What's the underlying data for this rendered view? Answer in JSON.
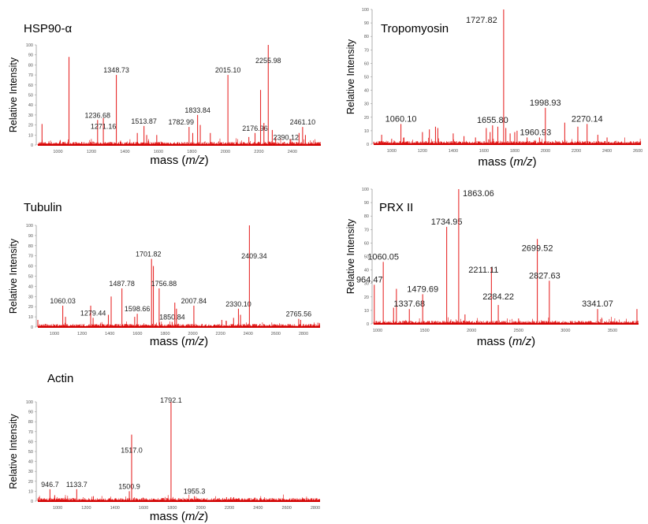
{
  "chart_data": [
    {
      "type": "bar",
      "title": "HSP90-α",
      "xlabel_prefix": "mass (",
      "xlabel_italic": "m/z",
      "xlabel_suffix": ")",
      "ylabel": "Relative Intensity",
      "xlim": [
        880,
        2570
      ],
      "ylim": [
        0,
        100
      ],
      "xticks": [
        1000,
        1200,
        1400,
        1600,
        1800,
        2000,
        2200,
        2400
      ],
      "yticks": [
        0,
        10,
        20,
        30,
        40,
        50,
        60,
        70,
        80,
        90,
        100
      ],
      "peaks": [
        {
          "mz": 905,
          "intensity": 21
        },
        {
          "mz": 1066,
          "intensity": 88
        },
        {
          "mz": 1236.68,
          "intensity": 25,
          "label": "1236.68"
        },
        {
          "mz": 1271.16,
          "intensity": 27,
          "label": "1271.16"
        },
        {
          "mz": 1348.73,
          "intensity": 70,
          "label": "1348.73"
        },
        {
          "mz": 1474,
          "intensity": 12
        },
        {
          "mz": 1513.87,
          "intensity": 19,
          "label": "1513.87"
        },
        {
          "mz": 1530,
          "intensity": 10
        },
        {
          "mz": 1590,
          "intensity": 10
        },
        {
          "mz": 1782.99,
          "intensity": 18,
          "label": "1782.99"
        },
        {
          "mz": 1805,
          "intensity": 12
        },
        {
          "mz": 1833.84,
          "intensity": 30,
          "label": "1833.84"
        },
        {
          "mz": 1850,
          "intensity": 20
        },
        {
          "mz": 1910,
          "intensity": 12
        },
        {
          "mz": 2015.1,
          "intensity": 70,
          "label": "2015.10"
        },
        {
          "mz": 2140,
          "intensity": 8
        },
        {
          "mz": 2176.96,
          "intensity": 12,
          "label": "2176.96"
        },
        {
          "mz": 2210,
          "intensity": 55
        },
        {
          "mz": 2230,
          "intensity": 22
        },
        {
          "mz": 2255.98,
          "intensity": 100,
          "label": "2255.98"
        },
        {
          "mz": 2280,
          "intensity": 15
        },
        {
          "mz": 2300,
          "intensity": 8
        },
        {
          "mz": 2390.12,
          "intensity": 6,
          "label": "2390.12"
        },
        {
          "mz": 2440,
          "intensity": 12
        },
        {
          "mz": 2461.1,
          "intensity": 18,
          "label": "2461.10"
        },
        {
          "mz": 2478,
          "intensity": 10
        }
      ]
    },
    {
      "type": "bar",
      "title": "Tropomyosin",
      "xlabel_prefix": "mass (",
      "xlabel_italic": "m/z",
      "xlabel_suffix": ")",
      "ylabel": "Relative Intensity",
      "xlim": [
        883,
        2620
      ],
      "ylim": [
        0,
        100
      ],
      "xticks": [
        1000,
        1200,
        1400,
        1600,
        1800,
        2000,
        2200,
        2400,
        2600
      ],
      "yticks": [
        0,
        10,
        20,
        30,
        40,
        50,
        60,
        70,
        80,
        90,
        100
      ],
      "peaks": [
        {
          "mz": 935,
          "intensity": 7
        },
        {
          "mz": 1000,
          "intensity": 4
        },
        {
          "mz": 1060.1,
          "intensity": 15,
          "label": "1060.10"
        },
        {
          "mz": 1080,
          "intensity": 5
        },
        {
          "mz": 1200,
          "intensity": 9
        },
        {
          "mz": 1245,
          "intensity": 11
        },
        {
          "mz": 1285,
          "intensity": 13
        },
        {
          "mz": 1300,
          "intensity": 12
        },
        {
          "mz": 1400,
          "intensity": 8
        },
        {
          "mz": 1470,
          "intensity": 6
        },
        {
          "mz": 1545,
          "intensity": 5
        },
        {
          "mz": 1615,
          "intensity": 12
        },
        {
          "mz": 1640,
          "intensity": 9
        },
        {
          "mz": 1655.8,
          "intensity": 14,
          "label": "1655.80"
        },
        {
          "mz": 1690,
          "intensity": 13
        },
        {
          "mz": 1727.82,
          "intensity": 100,
          "label": "1727.82"
        },
        {
          "mz": 1742,
          "intensity": 12
        },
        {
          "mz": 1770,
          "intensity": 8
        },
        {
          "mz": 1800,
          "intensity": 9
        },
        {
          "mz": 1815,
          "intensity": 10
        },
        {
          "mz": 1880,
          "intensity": 5
        },
        {
          "mz": 1960.93,
          "intensity": 5,
          "label": "1960.93"
        },
        {
          "mz": 1998.93,
          "intensity": 27,
          "label": "1998.93"
        },
        {
          "mz": 2125,
          "intensity": 16
        },
        {
          "mz": 2210,
          "intensity": 13
        },
        {
          "mz": 2270.14,
          "intensity": 15,
          "label": "2270.14"
        },
        {
          "mz": 2340,
          "intensity": 7
        },
        {
          "mz": 2400,
          "intensity": 5
        },
        {
          "mz": 2590,
          "intensity": 2
        }
      ]
    },
    {
      "type": "bar",
      "title": "Tubulin",
      "xlabel_prefix": "mass (",
      "xlabel_italic": "m/z",
      "xlabel_suffix": ")",
      "ylabel": "Relative Intensity",
      "xlim": [
        880,
        2920
      ],
      "ylim": [
        0,
        100
      ],
      "xticks": [
        1000,
        1200,
        1400,
        1600,
        1800,
        2000,
        2200,
        2400,
        2600,
        2800
      ],
      "yticks": [
        0,
        10,
        20,
        30,
        40,
        50,
        60,
        70,
        80,
        90,
        100
      ],
      "peaks": [
        {
          "mz": 880,
          "intensity": 7
        },
        {
          "mz": 1060.03,
          "intensity": 21,
          "label": "1060.03"
        },
        {
          "mz": 1080,
          "intensity": 10
        },
        {
          "mz": 1262,
          "intensity": 21
        },
        {
          "mz": 1279.44,
          "intensity": 9,
          "label": "1279.44"
        },
        {
          "mz": 1390,
          "intensity": 12
        },
        {
          "mz": 1410,
          "intensity": 30
        },
        {
          "mz": 1487.78,
          "intensity": 38,
          "label": "1487.78"
        },
        {
          "mz": 1580,
          "intensity": 10
        },
        {
          "mz": 1598.66,
          "intensity": 13,
          "label": "1598.66"
        },
        {
          "mz": 1701.82,
          "intensity": 67,
          "label": "1701.82"
        },
        {
          "mz": 1715,
          "intensity": 60
        },
        {
          "mz": 1756.88,
          "intensity": 38,
          "label": "1756.88"
        },
        {
          "mz": 1850.84,
          "intensity": 5,
          "label": "1850.84"
        },
        {
          "mz": 1870,
          "intensity": 24
        },
        {
          "mz": 1882,
          "intensity": 18
        },
        {
          "mz": 2007.84,
          "intensity": 21,
          "label": "2007.84"
        },
        {
          "mz": 2210,
          "intensity": 7
        },
        {
          "mz": 2295,
          "intensity": 9
        },
        {
          "mz": 2330.1,
          "intensity": 18,
          "label": "2330.10"
        },
        {
          "mz": 2345,
          "intensity": 12
        },
        {
          "mz": 2409.34,
          "intensity": 100,
          "label": "2409.34"
        },
        {
          "mz": 2765.56,
          "intensity": 8,
          "label": "2765.56"
        },
        {
          "mz": 2780,
          "intensity": 7
        }
      ]
    },
    {
      "type": "bar",
      "title": "PRX II",
      "xlabel_prefix": "mass (",
      "xlabel_italic": "m/z",
      "xlabel_suffix": ")",
      "ylabel": "Relative Intensity",
      "xlim": [
        958,
        3777
      ],
      "ylim": [
        0,
        100
      ],
      "xticks": [
        1000,
        1500,
        2000,
        2500,
        3000,
        3500
      ],
      "yticks": [
        0,
        10,
        20,
        30,
        40,
        50,
        60,
        70,
        80,
        90,
        100
      ],
      "peaks": [
        {
          "mz": 964.47,
          "intensity": 29,
          "label": "964.47"
        },
        {
          "mz": 1060.05,
          "intensity": 46,
          "label": "1060.05"
        },
        {
          "mz": 1170,
          "intensity": 12
        },
        {
          "mz": 1200,
          "intensity": 26
        },
        {
          "mz": 1337.68,
          "intensity": 11,
          "label": "1337.68"
        },
        {
          "mz": 1479.69,
          "intensity": 22,
          "label": "1479.69"
        },
        {
          "mz": 1734.95,
          "intensity": 72,
          "label": "1734.95"
        },
        {
          "mz": 1863.06,
          "intensity": 100,
          "label": "1863.06"
        },
        {
          "mz": 1930,
          "intensity": 7
        },
        {
          "mz": 2211.11,
          "intensity": 42,
          "label": "2211.11"
        },
        {
          "mz": 2284.22,
          "intensity": 14,
          "label": "2284.22"
        },
        {
          "mz": 2500,
          "intensity": 4
        },
        {
          "mz": 2699.52,
          "intensity": 63,
          "label": "2699.52"
        },
        {
          "mz": 2827.63,
          "intensity": 32,
          "label": "2827.63"
        },
        {
          "mz": 3341.07,
          "intensity": 11,
          "label": "3341.07"
        },
        {
          "mz": 3760,
          "intensity": 11
        }
      ]
    },
    {
      "type": "bar",
      "title": "Actin",
      "xlabel_prefix": "mass (",
      "xlabel_italic": "m/z",
      "xlabel_suffix": ")",
      "ylabel": "Relative Intensity",
      "xlim": [
        862,
        2833
      ],
      "ylim": [
        0,
        100
      ],
      "xticks": [
        1000,
        1200,
        1400,
        1600,
        1800,
        2000,
        2200,
        2400,
        2600,
        2800
      ],
      "yticks": [
        0,
        10,
        20,
        30,
        40,
        50,
        60,
        70,
        80,
        90,
        100
      ],
      "peaks": [
        {
          "mz": 870,
          "intensity": 4
        },
        {
          "mz": 946.7,
          "intensity": 12,
          "label": "946.7"
        },
        {
          "mz": 980,
          "intensity": 6
        },
        {
          "mz": 1010,
          "intensity": 3
        },
        {
          "mz": 1133.7,
          "intensity": 12,
          "label": "1133.7"
        },
        {
          "mz": 1250,
          "intensity": 5
        },
        {
          "mz": 1500.9,
          "intensity": 10,
          "label": "1500.9"
        },
        {
          "mz": 1517.0,
          "intensity": 67,
          "label": "1517.0"
        },
        {
          "mz": 1770,
          "intensity": 3
        },
        {
          "mz": 1792.1,
          "intensity": 100,
          "label": "1792.1"
        },
        {
          "mz": 1955.3,
          "intensity": 5,
          "label": "1955.3"
        },
        {
          "mz": 2180,
          "intensity": 4
        },
        {
          "mz": 2210,
          "intensity": 4
        },
        {
          "mz": 2230,
          "intensity": 4
        },
        {
          "mz": 2810,
          "intensity": 3
        }
      ]
    }
  ]
}
